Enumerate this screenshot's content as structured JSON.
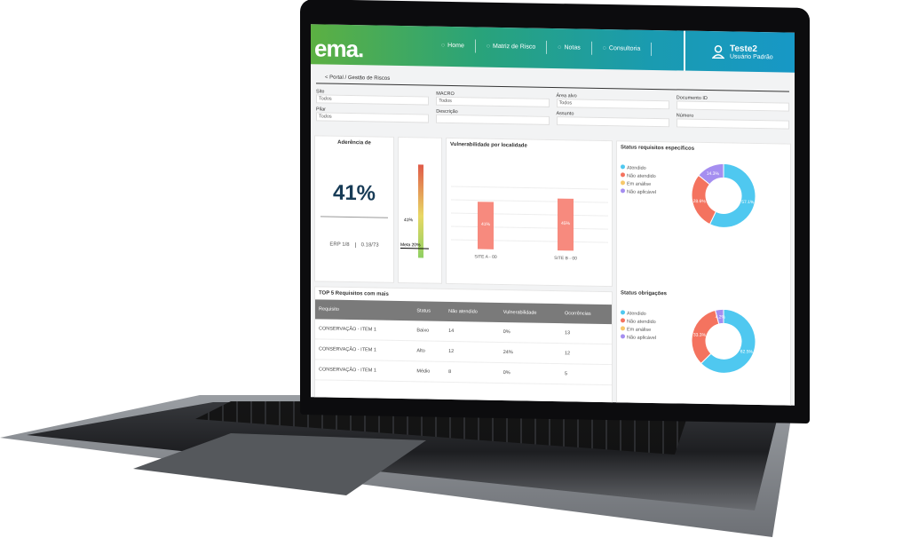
{
  "colors": {
    "accent_green": "#5cb042",
    "accent_blue": "#1798c6",
    "atendido": "#4fc8f0",
    "nao_atendido": "#f4735f",
    "em_analise": "#f7c86b",
    "nao_aplicavel": "#a58ef0",
    "bar": "#f78a7e"
  },
  "header": {
    "logo": "ema.",
    "nav": [
      {
        "label": "Home",
        "icon": "home-icon"
      },
      {
        "label": "Matriz de Risco",
        "icon": "globe-icon"
      },
      {
        "label": "Notas",
        "icon": "bar-chart-icon"
      },
      {
        "label": "Consultoria",
        "icon": "lightbulb-icon"
      }
    ],
    "user": {
      "name": "Teste2",
      "role": "Usuário Padrão",
      "icon": "user-icon"
    }
  },
  "breadcrumb": "< Portal / Gestão de Riscos",
  "filters": [
    {
      "label": "Site",
      "value": "Todos"
    },
    {
      "label": "MACRO",
      "value": "Todos"
    },
    {
      "label": "Área alvo",
      "value": "Todos"
    },
    {
      "label": "Documento ID",
      "value": ""
    },
    {
      "label": "Pilar",
      "value": "Todos"
    },
    {
      "label": "Descrição",
      "value": ""
    },
    {
      "label": "Assunto",
      "value": ""
    },
    {
      "label": "Número",
      "value": ""
    }
  ],
  "aderencia": {
    "title": "Aderência de",
    "value": "41%",
    "left": "ERP 1/8",
    "right": "0.18/73"
  },
  "gauge": {
    "labels": [
      "41%",
      "Meta 20%"
    ]
  },
  "vulnerabilidade": {
    "title": "Vulnerabilidade por localidade",
    "chart_data": {
      "type": "bar",
      "categories": [
        "SITE A - 00",
        "SITE B - 00"
      ],
      "values": [
        41,
        45
      ],
      "labels": [
        "41%",
        "45%"
      ]
    }
  },
  "status_req": {
    "title": "Status requisitos específicos",
    "legend": [
      "Atendido",
      "Não atendido",
      "Em análise",
      "Não aplicável"
    ],
    "chart_data": {
      "type": "pie",
      "values": [
        57.1,
        28.6,
        0,
        14.3
      ],
      "labels": [
        "57.1%",
        "28.6%",
        "",
        "14.3%"
      ]
    }
  },
  "status_obr": {
    "title": "Status obrigações",
    "legend": [
      "Atendido",
      "Não atendido",
      "Em análise",
      "Não aplicável"
    ],
    "chart_data": {
      "type": "pie",
      "values": [
        62.5,
        33.3,
        0,
        4.2
      ],
      "labels": [
        "62.5%",
        "33.3%",
        "",
        "4.2%"
      ]
    }
  },
  "top5": {
    "title": "TOP 5 Requisitos com mais",
    "columns": [
      "Requisito",
      "Status",
      "Não atendido",
      "Vulnerabilidade",
      "Ocorrências"
    ],
    "rows": [
      [
        "CONSERVAÇÃO - ITEM 1",
        "Baixo",
        "14",
        "0%",
        "13"
      ],
      [
        "CONSERVAÇÃO - ITEM 1",
        "Alto",
        "12",
        "24%",
        "12"
      ],
      [
        "CONSERVAÇÃO - ITEM 1",
        "Médio",
        "8",
        "0%",
        "5"
      ]
    ]
  }
}
